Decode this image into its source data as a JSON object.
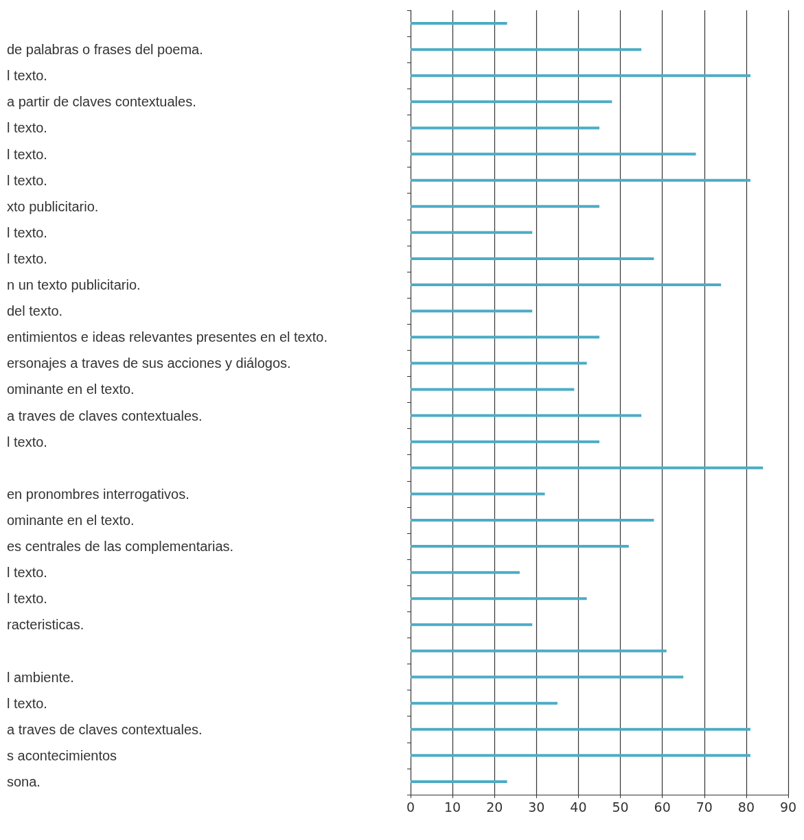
{
  "chart_data": {
    "type": "bar",
    "orientation": "horizontal",
    "categories": [
      null,
      "de palabras o frases del poema.",
      "l texto.",
      "a partir de claves contextuales.",
      "l texto.",
      "l texto.",
      "l texto.",
      "xto publicitario.",
      "l texto.",
      "l texto.",
      "n un texto publicitario.",
      "del texto.",
      "entimientos e ideas relevantes presentes en el texto.",
      "ersonajes a traves de sus acciones y diálogos.",
      "ominante en el texto.",
      "a traves de claves contextuales.",
      "l texto.",
      null,
      "en pronombres interrogativos.",
      "ominante en el texto.",
      "es centrales de las complementarias.",
      "l texto.",
      "l texto.",
      "racteristicas.",
      null,
      "l ambiente.",
      "l texto.",
      "a traves de claves contextuales.",
      "s acontecimientos",
      "sona."
    ],
    "values": [
      23,
      55,
      81,
      48,
      45,
      68,
      81,
      45,
      29,
      58,
      74,
      29,
      45,
      42,
      39,
      55,
      45,
      84,
      32,
      58,
      52,
      26,
      42,
      29,
      61,
      65,
      35,
      81,
      81,
      23
    ],
    "color": "#4bacc6",
    "xlim": [
      0,
      90
    ],
    "xticks": [
      0,
      10,
      20,
      30,
      40,
      50,
      60,
      70,
      80,
      90
    ],
    "grid": "x"
  }
}
